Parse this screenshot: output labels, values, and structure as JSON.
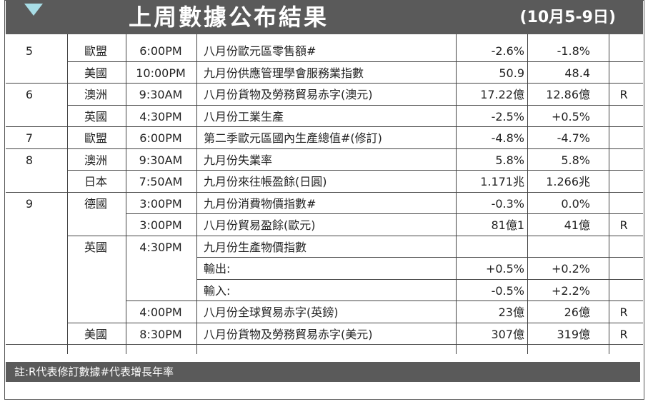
{
  "header": {
    "title": "上周數據公布結果",
    "date_range": "(10月5-9日)"
  },
  "rows": [
    {
      "day": "5",
      "country": "歐盟",
      "time": "6:00PM",
      "item": "八月份歐元區零售額#",
      "actual": "-2.6%",
      "previous": "-1.8%",
      "flag": ""
    },
    {
      "day": "",
      "country": "美國",
      "time": "10:00PM",
      "item": "九月份供應管理學會服務業指數",
      "actual": "50.9",
      "previous": "48.4",
      "flag": ""
    },
    {
      "day": "6",
      "country": "澳洲",
      "time": "9:30AM",
      "item": "八月份貨物及勞務貿易赤字(澳元)",
      "actual": "17.22億",
      "previous": "12.86億",
      "flag": "R"
    },
    {
      "day": "",
      "country": "英國",
      "time": "4:30PM",
      "item": "八月份工業生產",
      "actual": "-2.5%",
      "previous": "+0.5%",
      "flag": ""
    },
    {
      "day": "7",
      "country": "歐盟",
      "time": "6:00PM",
      "item": "第二季歐元區國內生產總值#(修訂)",
      "actual": "-4.8%",
      "previous": "-4.7%",
      "flag": ""
    },
    {
      "day": "8",
      "country": "澳洲",
      "time": "9:30AM",
      "item": "九月份失業率",
      "actual": "5.8%",
      "previous": "5.8%",
      "flag": ""
    },
    {
      "day": "",
      "country": "日本",
      "time": "7:50AM",
      "item": "九月份來往帳盈餘(日圓)",
      "actual": "1.171兆",
      "previous": "1.266兆",
      "flag": ""
    },
    {
      "day": "9",
      "country": "德國",
      "time": "3:00PM",
      "item": "九月份消費物價指數#",
      "actual": "-0.3%",
      "previous": "0.0%",
      "flag": ""
    },
    {
      "day": "",
      "country": "",
      "time": "3:00PM",
      "item": "八月份貿易盈餘(歐元)",
      "actual": "81億1",
      "previous": "41億",
      "flag": "R"
    },
    {
      "day": "",
      "country": "英國",
      "time": "4:30PM",
      "item": "九月份生產物價指數",
      "actual": "",
      "previous": "",
      "flag": ""
    },
    {
      "day": "",
      "country": "",
      "time": "",
      "item": "輸出:",
      "actual": "+0.5%",
      "previous": "+0.2%",
      "flag": ""
    },
    {
      "day": "",
      "country": "",
      "time": "",
      "item": "輸入:",
      "actual": "-0.5%",
      "previous": "+2.2%",
      "flag": ""
    },
    {
      "day": "",
      "country": "",
      "time": "4:00PM",
      "item": "八月份全球貿易赤字(英鎊)",
      "actual": "23億",
      "previous": "26億",
      "flag": "R"
    },
    {
      "day": "",
      "country": "美國",
      "time": "8:30PM",
      "item": "八月份貨物及勞務貿易赤字(美元)",
      "actual": "307億",
      "previous": "319億",
      "flag": "R"
    }
  ],
  "footer": {
    "note": "註:R代表修訂數據#代表增長年率"
  }
}
